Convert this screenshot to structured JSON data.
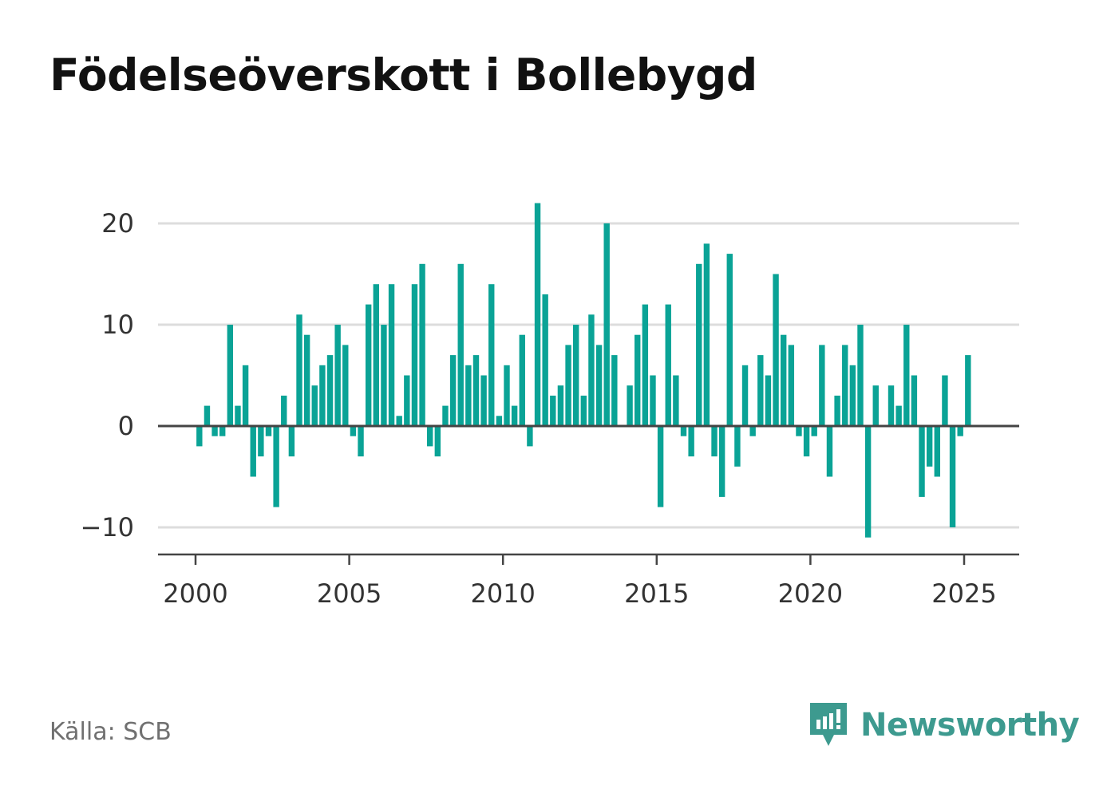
{
  "title": "Födelseöverskott i Bollebygd",
  "source": "Källa: SCB",
  "brand": {
    "name": "Newsworthy",
    "icon": "newsworthy-logo-icon"
  },
  "colors": {
    "bar": "#0aa396",
    "grid": "#dddddd",
    "zero_line": "#444444",
    "brand": "#3d9a8f"
  },
  "chart_data": {
    "type": "bar",
    "title": "Födelseöverskott i Bollebygd",
    "xlabel": "",
    "ylabel": "",
    "ylim": [
      -12.6,
      24
    ],
    "xlim": [
      1999.5,
      2026.8
    ],
    "grid": true,
    "y_ticks": [
      -10,
      0,
      10,
      20
    ],
    "y_tick_labels": [
      "−10",
      "0",
      "10",
      "20"
    ],
    "x_ticks": [
      2000,
      2005,
      2010,
      2015,
      2020,
      2025
    ],
    "x_tick_labels": [
      "2000",
      "2005",
      "2010",
      "2015",
      "2020",
      "2025"
    ],
    "frequency": "quarterly",
    "start": "2000 Q1",
    "values": [
      -2,
      2,
      -1,
      -1,
      10,
      2,
      6,
      -5,
      -3,
      -1,
      -8,
      3,
      -3,
      11,
      9,
      4,
      6,
      7,
      10,
      8,
      -1,
      -3,
      12,
      14,
      10,
      14,
      1,
      5,
      14,
      16,
      -2,
      -3,
      2,
      7,
      16,
      6,
      7,
      5,
      14,
      1,
      6,
      2,
      9,
      -2,
      22,
      13,
      3,
      4,
      8,
      10,
      3,
      11,
      8,
      20,
      7,
      0,
      4,
      9,
      12,
      5,
      -8,
      12,
      5,
      -1,
      -3,
      16,
      18,
      -3,
      -7,
      17,
      -4,
      6,
      -1,
      7,
      5,
      15,
      9,
      8,
      -1,
      -3,
      -1,
      8,
      -5,
      3,
      8,
      6,
      10,
      -11,
      4,
      0,
      4,
      2,
      10,
      5,
      -7,
      -4,
      -5,
      5,
      -10,
      -1,
      7
    ]
  }
}
